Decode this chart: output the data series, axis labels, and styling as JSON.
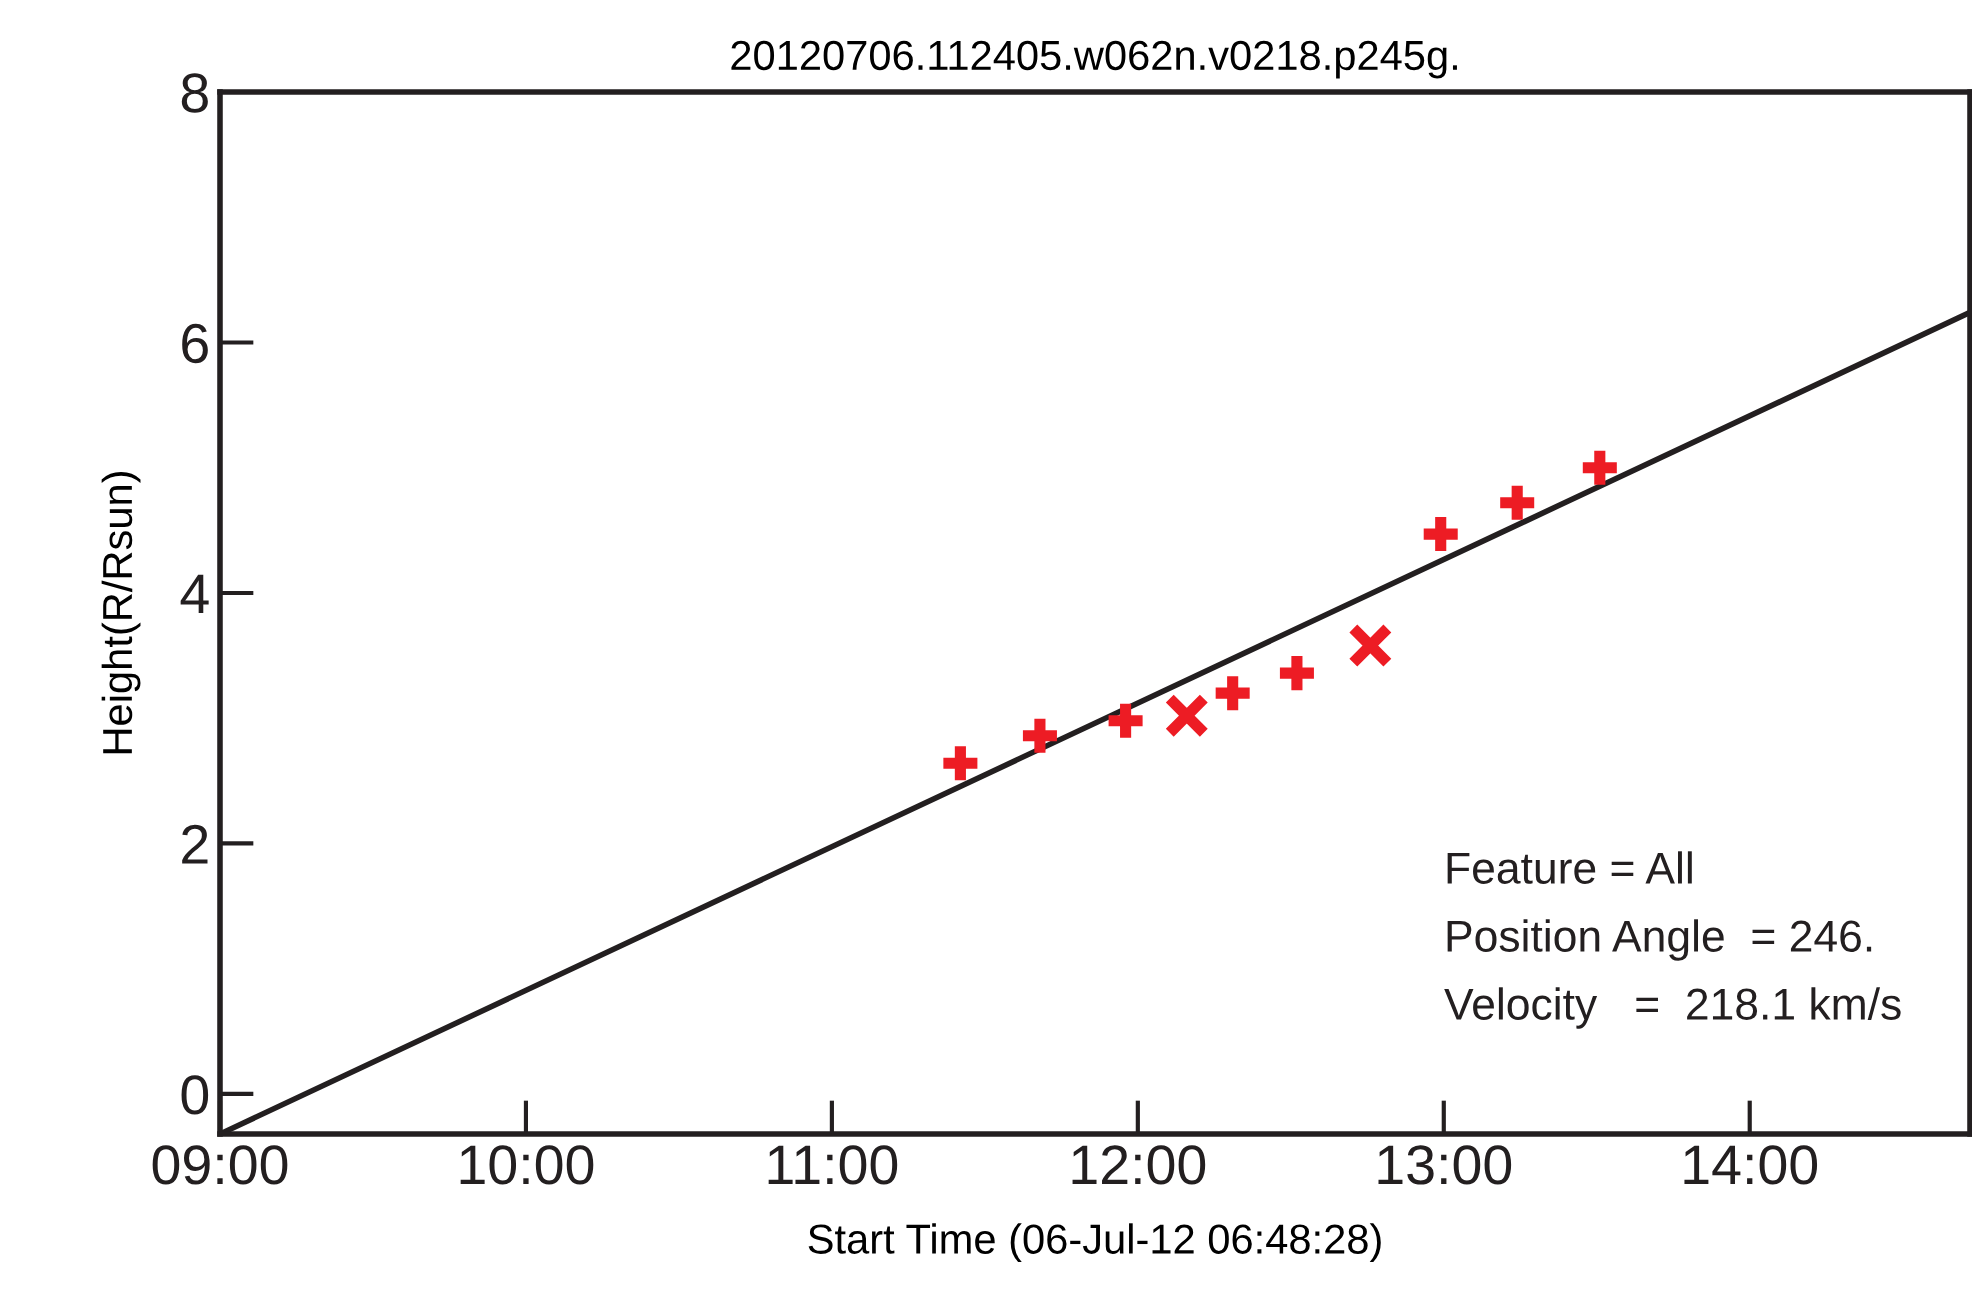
{
  "chart_data": {
    "type": "scatter",
    "title": "20120706.112405.w062n.v0218.p245g.",
    "xlabel": "Start Time (06-Jul-12 06:48:28)",
    "ylabel": "Height(R/Rsun)",
    "series": [
      {
        "color": "#ed1c24",
        "marker": "cross",
        "x": [
          11.42,
          11.68,
          11.96,
          12.31,
          12.52,
          12.99,
          13.24,
          13.51
        ],
        "values": [
          2.64,
          2.86,
          2.98,
          3.2,
          3.36,
          4.47,
          4.72,
          5.0
        ]
      },
      {
        "color": "#ed1c24",
        "marker": "x",
        "x": [
          12.16,
          12.76
        ],
        "values": [
          3.02,
          3.58
        ]
      },
      {
        "type": "line",
        "color": "#231f20",
        "marker": "none",
        "line_style": "solid",
        "x": [
          9,
          14.72
        ],
        "values": [
          -0.32,
          6.24
        ]
      }
    ],
    "xlim": [
      9,
      14.72
    ],
    "xticks": [
      {
        "value": 9,
        "label": "09:00"
      },
      {
        "value": 10,
        "label": "10:00"
      },
      {
        "value": 11,
        "label": "11:00"
      },
      {
        "value": 12,
        "label": "12:00"
      },
      {
        "value": 13,
        "label": "13:00"
      },
      {
        "value": 14,
        "label": "14:00"
      }
    ],
    "ylim": [
      -0.32,
      8
    ],
    "yticks": [
      0,
      2,
      4,
      6,
      8
    ],
    "grid": false,
    "legend": false,
    "annotations": [
      "Feature = All",
      "Position Angle  = 246.",
      "Velocity   =  218.1 km/s"
    ]
  }
}
